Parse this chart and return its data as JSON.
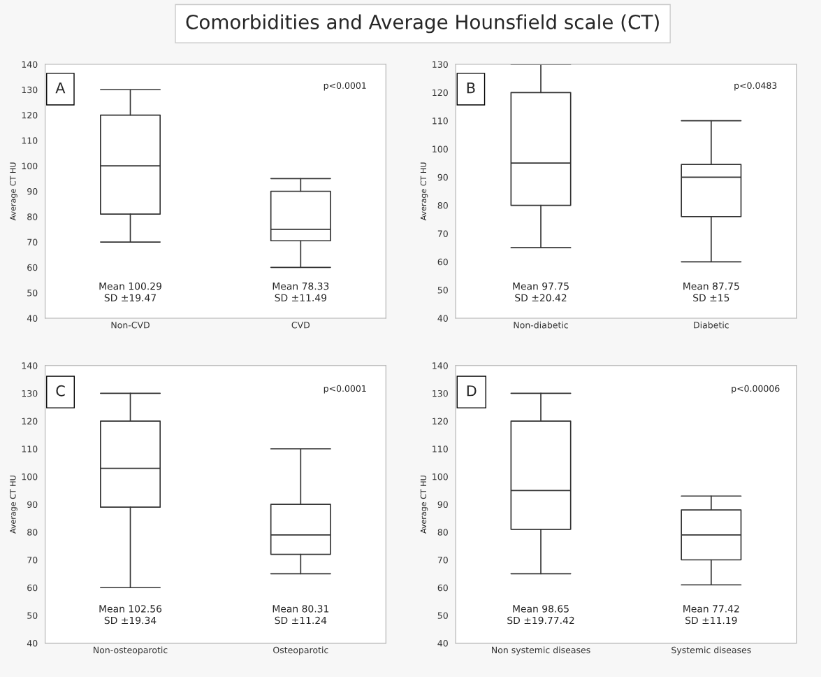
{
  "chart_data": [
    {
      "type": "box",
      "title": "Comorbidities and Average Hounsfield scale (CT)",
      "ylabel": "Average CT HU",
      "categories": [
        "Non-CVD",
        "CVD"
      ],
      "ylim": [
        40,
        140
      ],
      "yticks": [
        40,
        50,
        60,
        70,
        80,
        90,
        100,
        110,
        120,
        130,
        140
      ],
      "grid": false,
      "boxes": [
        {
          "low": 70,
          "q1": 81,
          "median": 100,
          "q3": 120,
          "high": 130
        },
        {
          "low": 60,
          "q1": 70.5,
          "median": 75,
          "q3": 90,
          "high": 95
        }
      ],
      "annotations": [
        "A",
        "p<0.0001",
        "Mean 100.29\nSD ±19.47",
        "Mean 78.33\nSD ±11.49"
      ]
    },
    {
      "type": "box",
      "ylabel": "Average CT HU",
      "categories": [
        "Non-diabetic",
        "Diabetic"
      ],
      "ylim": [
        40,
        130
      ],
      "yticks": [
        40,
        50,
        60,
        70,
        80,
        90,
        100,
        110,
        120,
        130
      ],
      "grid": false,
      "boxes": [
        {
          "low": 65,
          "q1": 80,
          "median": 95,
          "q3": 120,
          "high": 130
        },
        {
          "low": 60,
          "q1": 76,
          "median": 90,
          "q3": 94.5,
          "high": 110
        }
      ],
      "annotations": [
        "B",
        "p<0.0483",
        "Mean 97.75\nSD ±20.42",
        "Mean 87.75\nSD ±15"
      ]
    },
    {
      "type": "box",
      "ylabel": "Average CT HU",
      "categories": [
        "Non-osteoparotic",
        "Osteoparotic"
      ],
      "ylim": [
        40,
        140
      ],
      "yticks": [
        40,
        50,
        60,
        70,
        80,
        90,
        100,
        110,
        120,
        130,
        140
      ],
      "grid": false,
      "boxes": [
        {
          "low": 60,
          "q1": 89,
          "median": 103,
          "q3": 120,
          "high": 130
        },
        {
          "low": 65,
          "q1": 72,
          "median": 79,
          "q3": 90,
          "high": 110
        }
      ],
      "annotations": [
        "C",
        "p<0.0001",
        "Mean 102.56\nSD ±19.34",
        "Mean 80.31\nSD ±11.24"
      ]
    },
    {
      "type": "box",
      "ylabel": "Average CT HU",
      "categories": [
        "Non systemic diseases",
        "Systemic diseases"
      ],
      "ylim": [
        40,
        140
      ],
      "yticks": [
        40,
        50,
        60,
        70,
        80,
        90,
        100,
        110,
        120,
        130,
        140
      ],
      "grid": false,
      "boxes": [
        {
          "low": 65,
          "q1": 81,
          "median": 95,
          "q3": 120,
          "high": 130
        },
        {
          "low": 61,
          "q1": 70,
          "median": 79,
          "q3": 88,
          "high": 93
        }
      ],
      "annotations": [
        "D",
        "p<0.00006",
        "Mean 98.65\nSD ±19.77.42",
        "Mean 77.42\nSD ±11.19"
      ]
    }
  ]
}
